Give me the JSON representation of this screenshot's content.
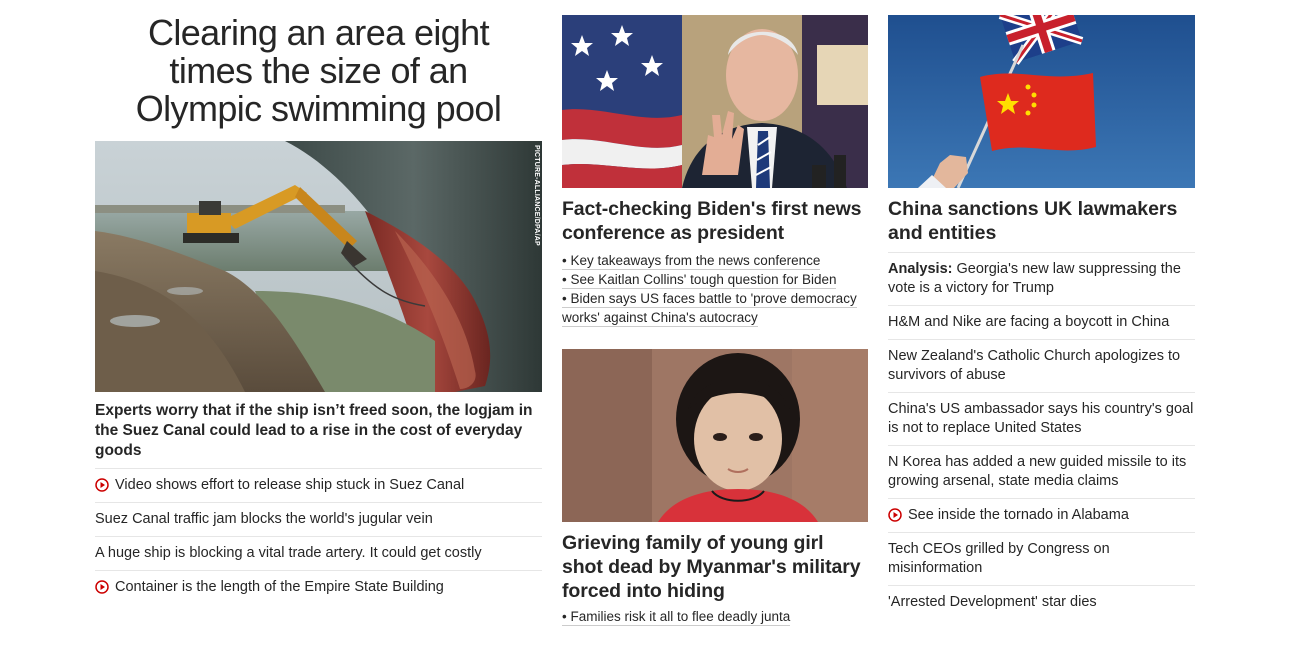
{
  "left": {
    "hero_title": "Clearing an area eight\ntimes the size of an\nOlympic swimming pool",
    "photo_credit": "PICTURE-ALLIANCE/DPA/AP",
    "hero_subtitle": "Experts worry that if the ship isn’t freed soon, the logjam in the Suez Canal could lead to a rise in the cost of everyday goods",
    "links": [
      {
        "label": "Video shows effort to release ship stuck in Suez Canal",
        "icon": "play-icon"
      },
      {
        "label": "Suez Canal traffic jam blocks the world's jugular vein",
        "icon": ""
      },
      {
        "label": "A huge ship is blocking a vital trade artery. It could get costly",
        "icon": ""
      },
      {
        "label": "Container is the length of the Empire State Building",
        "icon": "play-icon"
      }
    ]
  },
  "middle": {
    "story1": {
      "title": "Fact-checking Biden's first news conference as president",
      "bullets": [
        "• Key takeaways from the news conference",
        "• See Kaitlan Collins' tough question for Biden",
        "• Biden says US faces battle to 'prove democracy works' against China's autocracy"
      ]
    },
    "story2": {
      "title": "Grieving family of young girl shot dead by Myanmar's military forced into hiding",
      "bullets": [
        "• Families risk it all to flee deadly junta"
      ]
    }
  },
  "right": {
    "title": "China sanctions UK lawmakers and entities",
    "links": [
      {
        "prefix": "Analysis:",
        "label": "Georgia's new law suppressing the vote is a victory for Trump",
        "icon": ""
      },
      {
        "prefix": "",
        "label": "H&M and Nike are facing a boycott in China",
        "icon": ""
      },
      {
        "prefix": "",
        "label": "New Zealand's Catholic Church apologizes to survivors of abuse",
        "icon": ""
      },
      {
        "prefix": "",
        "label": "China's US ambassador says his country's goal is not to replace United States",
        "icon": ""
      },
      {
        "prefix": "",
        "label": "N Korea has added a new guided missile to its growing arsenal, state media claims",
        "icon": ""
      },
      {
        "prefix": "",
        "label": "See inside the tornado in Alabama",
        "icon": "play-icon"
      },
      {
        "prefix": "",
        "label": "Tech CEOs grilled by Congress on misinformation",
        "icon": ""
      },
      {
        "prefix": "",
        "label": "'Arrested Development' star dies",
        "icon": ""
      }
    ]
  },
  "colors": {
    "text": "#262626",
    "play_red": "#cc0000",
    "divider": "#e6e6e6"
  }
}
